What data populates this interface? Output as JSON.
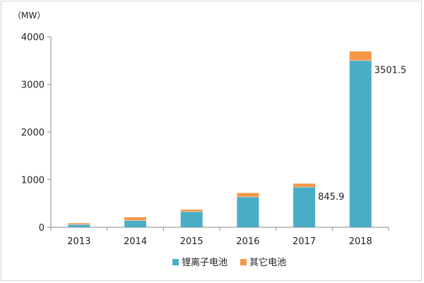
{
  "chart_data": {
    "type": "bar",
    "stacked": true,
    "unit_label": "（MW）",
    "categories": [
      "2013",
      "2014",
      "2015",
      "2016",
      "2017",
      "2018"
    ],
    "series": [
      {
        "name": "锂离子电池",
        "color": "#4bacc6",
        "values": [
          60,
          145,
          330,
          640,
          845.9,
          3501.5
        ]
      },
      {
        "name": "其它电池",
        "color": "#f79646",
        "values": [
          25,
          65,
          40,
          80,
          70,
          190
        ]
      }
    ],
    "data_labels": [
      {
        "category": "2017",
        "series": "锂离子电池",
        "text": "845.9"
      },
      {
        "category": "2018",
        "series": "锂离子电池",
        "text": "3501.5"
      }
    ],
    "yticks": [
      "0",
      "1000",
      "2000",
      "3000",
      "4000"
    ],
    "ylim": [
      0,
      4000
    ],
    "grid": false,
    "legend_position": "bottom"
  }
}
